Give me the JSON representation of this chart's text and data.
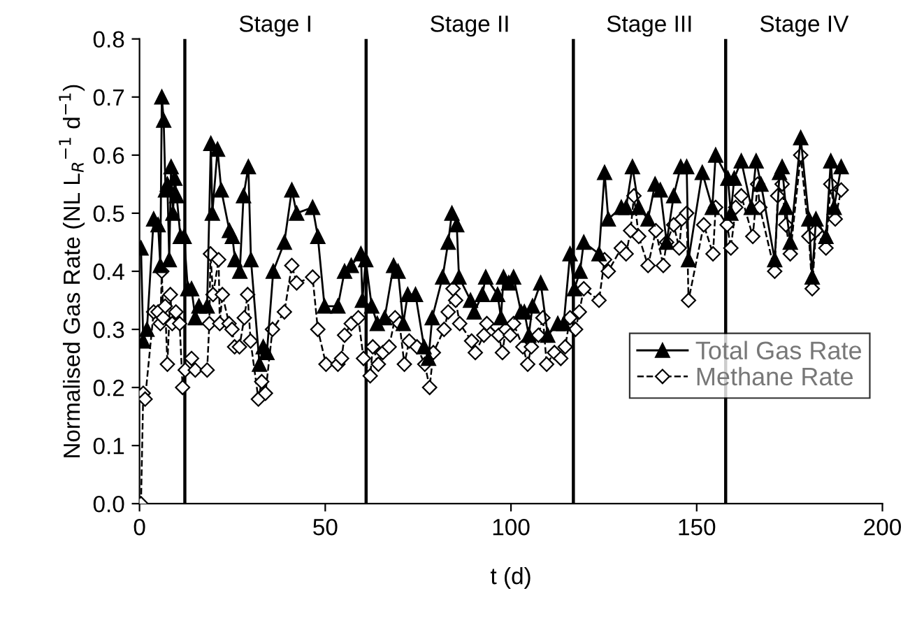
{
  "chart_data": {
    "type": "line",
    "xlabel": "t (d)",
    "ylabel": "Normalised Gas Rate (NL L$_{R}$$^{−1}$ d$^{−1}$)",
    "xlim": [
      0,
      200
    ],
    "xticks": [
      0,
      50,
      100,
      150,
      200
    ],
    "ylim": [
      0,
      0.8
    ],
    "yticks": [
      {
        "value": 0,
        "label": "0.0"
      },
      {
        "value": 0.1,
        "label": "0.1"
      },
      {
        "value": 0.2,
        "label": "0.2"
      },
      {
        "value": 0.3,
        "label": "0.3"
      },
      {
        "value": 0.4,
        "label": "0.4"
      },
      {
        "value": 0.5,
        "label": "0.5"
      },
      {
        "value": 0.6,
        "label": "0.6"
      },
      {
        "value": 0.7,
        "label": "0.7"
      },
      {
        "value": 0.8,
        "label": "0.8"
      }
    ],
    "grid": false,
    "legend": "bottom right",
    "ref_lines": [
      {
        "axis": "x",
        "value": 12.2,
        "label": "Stage I",
        "color": "#000000"
      },
      {
        "axis": "x",
        "value": 61,
        "label": "Stage II",
        "color": "#000000"
      },
      {
        "axis": "x",
        "value": 116.8,
        "label": "Stage III",
        "color": "#000000"
      },
      {
        "axis": "x",
        "value": 157.8,
        "label": "Stage IV",
        "color": "#000000"
      }
    ],
    "series": [
      {
        "name": "Total Gas Rate",
        "color": "#000000",
        "marker": "triangle",
        "line_style": "solid",
        "x": [
          0.4,
          1,
          2,
          3.8,
          5,
          5.6,
          6,
          6.5,
          7,
          7.5,
          8,
          8.5,
          9,
          9.5,
          10,
          11,
          12,
          13,
          14,
          15,
          16,
          18.2,
          19.2,
          19.6,
          21,
          22,
          24.2,
          25,
          25.7,
          27,
          28,
          29.3,
          30,
          32.3,
          33.3,
          34.3,
          36,
          39,
          41,
          42.3,
          46.6,
          48,
          49.8,
          53.4,
          55.2,
          57,
          59.6,
          60,
          60.9,
          62.5,
          64,
          66,
          68.4,
          69.6,
          71,
          72.2,
          74.3,
          76.6,
          77.8,
          78.8,
          81.6,
          83.1,
          84.1,
          85.4,
          86,
          89.1,
          90.1,
          92.3,
          93.2,
          96.4,
          97.3,
          98,
          99.4,
          100.7,
          102.7,
          103.6,
          104.8,
          105.8,
          108,
          109.9,
          112.6,
          114.2,
          115.9,
          117.1,
          118.6,
          119.6,
          123.7,
          125.2,
          126.2,
          129.7,
          131,
          132.7,
          134.4,
          136.9,
          138.8,
          140.2,
          141.9,
          143.8,
          145.7,
          147.3,
          147.8,
          151.5,
          154.2,
          155.1,
          158.4,
          159.2,
          160.1,
          162,
          164.7,
          166,
          167.3,
          171,
          172.3,
          173,
          174,
          175.2,
          178,
          180.2,
          181.1,
          182.1,
          184.8,
          186.1,
          187,
          188.9
        ],
        "values": [
          0.44,
          0.28,
          0.3,
          0.49,
          0.48,
          0.41,
          0.7,
          0.66,
          0.54,
          0.55,
          0.42,
          0.58,
          0.5,
          0.56,
          0.53,
          0.46,
          0.46,
          0.37,
          0.37,
          0.32,
          0.34,
          0.34,
          0.62,
          0.5,
          0.61,
          0.54,
          0.47,
          0.46,
          0.42,
          0.4,
          0.53,
          0.58,
          0.42,
          0.24,
          0.27,
          0.26,
          0.4,
          0.45,
          0.54,
          0.5,
          0.51,
          0.46,
          0.34,
          0.34,
          0.4,
          0.41,
          0.43,
          0.35,
          0.42,
          0.34,
          0.31,
          0.32,
          0.41,
          0.4,
          0.31,
          0.36,
          0.36,
          0.27,
          0.25,
          0.32,
          0.39,
          0.45,
          0.5,
          0.48,
          0.39,
          0.35,
          0.33,
          0.36,
          0.39,
          0.36,
          0.32,
          0.39,
          0.38,
          0.39,
          0.33,
          0.33,
          0.29,
          0.34,
          0.38,
          0.29,
          0.31,
          0.31,
          0.43,
          0.37,
          0.4,
          0.45,
          0.43,
          0.57,
          0.49,
          0.51,
          0.51,
          0.58,
          0.51,
          0.49,
          0.55,
          0.54,
          0.45,
          0.53,
          0.58,
          0.58,
          0.42,
          0.57,
          0.51,
          0.6,
          0.56,
          0.5,
          0.56,
          0.59,
          0.51,
          0.59,
          0.55,
          0.42,
          0.57,
          0.58,
          0.51,
          0.45,
          0.63,
          0.49,
          0.39,
          0.49,
          0.46,
          0.59,
          0.51,
          0.58
        ]
      },
      {
        "name": "Methane Rate",
        "color": "#000000",
        "marker": "diamond",
        "line_style": "dashed",
        "x": [
          0.4,
          1,
          1.5,
          3.8,
          5,
          5.6,
          6,
          6.4,
          6.9,
          7.5,
          8.3,
          8.8,
          9.8,
          10.8,
          11.6,
          12.3,
          14,
          15,
          18.2,
          18.8,
          19.1,
          19.8,
          21.3,
          21.6,
          22.3,
          24.1,
          24.9,
          25.6,
          26.9,
          28.2,
          29.1,
          29.9,
          32,
          32.9,
          33.9,
          35.8,
          39,
          41,
          42.3,
          46.6,
          48,
          50.2,
          53.4,
          54.4,
          55.2,
          57,
          58.9,
          60.3,
          62.1,
          62.8,
          64.3,
          65.5,
          67.2,
          68.8,
          70,
          71.3,
          72.6,
          74.7,
          76.8,
          78.1,
          79.1,
          82,
          83.1,
          84.4,
          85.1,
          86.2,
          89.4,
          90.4,
          92.7,
          93.5,
          96.7,
          97.7,
          98.6,
          99.8,
          100.7,
          103.2,
          104.5,
          105.5,
          107.4,
          108.6,
          109.6,
          111.7,
          113.4,
          114.6,
          115.9,
          117.4,
          118.4,
          119.6,
          123.7,
          125.2,
          126.2,
          129.7,
          131,
          132.2,
          133.1,
          134.4,
          136.9,
          139,
          141,
          141.9,
          143.8,
          145.3,
          146,
          147.3,
          147.8,
          151.9,
          154.4,
          155.1,
          158.2,
          159.2,
          160.5,
          162,
          165.1,
          166.4,
          167,
          171,
          171.8,
          173,
          174,
          175.2,
          178,
          180.2,
          181.1,
          182.1,
          184.8,
          186.1,
          187.3,
          188.9
        ],
        "values": [
          0.0,
          0.19,
          0.18,
          0.33,
          0.33,
          0.31,
          0.4,
          0.32,
          0.34,
          0.24,
          0.36,
          0.31,
          0.33,
          0.31,
          0.2,
          0.23,
          0.25,
          0.23,
          0.23,
          0.31,
          0.43,
          0.36,
          0.42,
          0.31,
          0.36,
          0.31,
          0.3,
          0.27,
          0.27,
          0.32,
          0.36,
          0.28,
          0.18,
          0.21,
          0.19,
          0.3,
          0.33,
          0.41,
          0.38,
          0.39,
          0.3,
          0.24,
          0.24,
          0.25,
          0.29,
          0.31,
          0.32,
          0.25,
          0.22,
          0.27,
          0.24,
          0.26,
          0.27,
          0.32,
          0.31,
          0.24,
          0.28,
          0.27,
          0.24,
          0.2,
          0.26,
          0.3,
          0.33,
          0.37,
          0.35,
          0.31,
          0.28,
          0.26,
          0.29,
          0.31,
          0.29,
          0.26,
          0.3,
          0.29,
          0.31,
          0.27,
          0.24,
          0.27,
          0.29,
          0.32,
          0.24,
          0.26,
          0.25,
          0.27,
          0.32,
          0.3,
          0.33,
          0.37,
          0.35,
          0.42,
          0.4,
          0.44,
          0.43,
          0.47,
          0.53,
          0.46,
          0.41,
          0.47,
          0.41,
          0.45,
          0.48,
          0.44,
          0.49,
          0.5,
          0.35,
          0.48,
          0.43,
          0.51,
          0.48,
          0.44,
          0.51,
          0.53,
          0.46,
          0.55,
          0.51,
          0.4,
          0.53,
          0.55,
          0.48,
          0.43,
          0.6,
          0.46,
          0.37,
          0.47,
          0.44,
          0.55,
          0.49,
          0.54
        ]
      }
    ]
  }
}
